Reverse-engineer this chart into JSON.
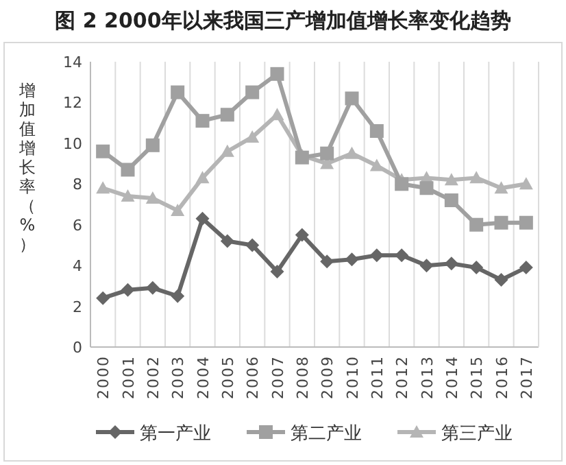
{
  "chart_data": {
    "type": "line",
    "title": "图 2 2000年以来我国三产增加值增长率变化趋势",
    "ylabel": "增加值增长率（%）",
    "categories": [
      "2000",
      "2001",
      "2002",
      "2003",
      "2004",
      "2005",
      "2006",
      "2007",
      "2008",
      "2009",
      "2010",
      "2011",
      "2012",
      "2013",
      "2014",
      "2015",
      "2016",
      "2017"
    ],
    "series": [
      {
        "name": "第一产业",
        "color": "#666666",
        "marker": "diamond",
        "values": [
          2.4,
          2.8,
          2.9,
          2.5,
          6.3,
          5.2,
          5.0,
          3.7,
          5.5,
          4.2,
          4.3,
          4.5,
          4.5,
          4.0,
          4.1,
          3.9,
          3.3,
          3.9
        ]
      },
      {
        "name": "第二产业",
        "color": "#a0a0a0",
        "marker": "square",
        "values": [
          9.6,
          8.7,
          9.9,
          12.5,
          11.1,
          11.4,
          12.5,
          13.4,
          9.3,
          9.5,
          12.2,
          10.6,
          8.0,
          7.8,
          7.2,
          6.0,
          6.1,
          6.1
        ]
      },
      {
        "name": "第三产业",
        "color": "#b5b5b5",
        "marker": "triangle",
        "values": [
          7.8,
          7.4,
          7.3,
          6.7,
          8.3,
          9.6,
          10.3,
          11.4,
          9.4,
          9.0,
          9.5,
          8.9,
          8.2,
          8.3,
          8.2,
          8.3,
          7.8,
          8.0
        ]
      }
    ],
    "ylim": [
      0,
      14
    ],
    "yticks": [
      0,
      2,
      4,
      6,
      8,
      10,
      12,
      14
    ],
    "grid": "x",
    "legend": "bottom",
    "line_style": "solid"
  }
}
